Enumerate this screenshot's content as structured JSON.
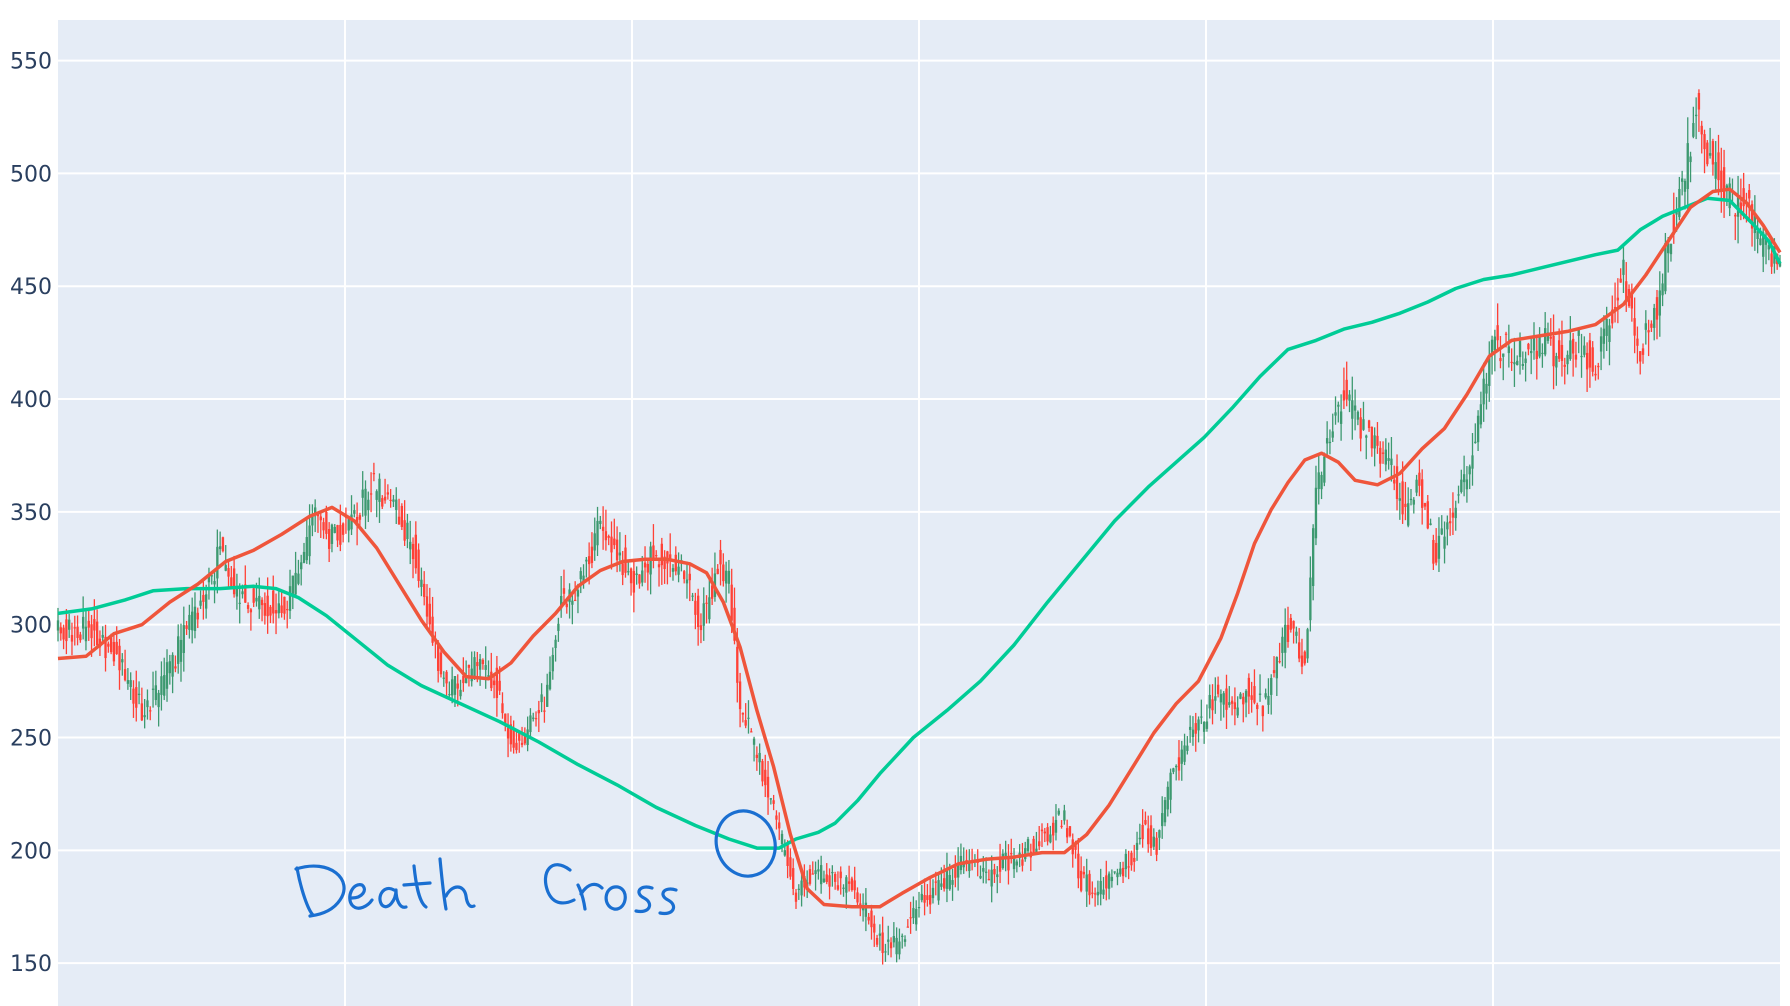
{
  "chart_data": {
    "type": "candlestick",
    "title": "",
    "xlabel": "",
    "ylabel": "",
    "ylim": [
      131,
      568
    ],
    "yticks": [
      150,
      200,
      250,
      300,
      350,
      400,
      450,
      500,
      550
    ],
    "x_gridlines": 5,
    "grid": true,
    "legend": "none",
    "colors": {
      "plot_background": "#e5ecf6",
      "grid": "#ffffff",
      "tick_text": "#2a3f5f",
      "candle_up": "#3d9970",
      "candle_down": "#ff4136",
      "short_ma": "#ef553b",
      "long_ma": "#00cc96",
      "annotation": "#1a6fd1"
    },
    "candle_close_path": [
      [
        0,
        297
      ],
      [
        12,
        298
      ],
      [
        22,
        284
      ],
      [
        30,
        262
      ],
      [
        36,
        270
      ],
      [
        44,
        292
      ],
      [
        52,
        311
      ],
      [
        58,
        333
      ],
      [
        64,
        312
      ],
      [
        72,
        311
      ],
      [
        80,
        307
      ],
      [
        85,
        319
      ],
      [
        92,
        349
      ],
      [
        98,
        338
      ],
      [
        105,
        344
      ],
      [
        112,
        362
      ],
      [
        120,
        352
      ],
      [
        127,
        334
      ],
      [
        133,
        298
      ],
      [
        138,
        275
      ],
      [
        144,
        273
      ],
      [
        150,
        283
      ],
      [
        156,
        276
      ],
      [
        162,
        248
      ],
      [
        168,
        253
      ],
      [
        175,
        268
      ],
      [
        180,
        311
      ],
      [
        187,
        318
      ],
      [
        193,
        341
      ],
      [
        200,
        334
      ],
      [
        206,
        316
      ],
      [
        212,
        331
      ],
      [
        218,
        330
      ],
      [
        225,
        322
      ],
      [
        230,
        299
      ],
      [
        236,
        327
      ],
      [
        240,
        318
      ],
      [
        244,
        263
      ],
      [
        248,
        250
      ],
      [
        253,
        231
      ],
      [
        258,
        207
      ],
      [
        264,
        181
      ],
      [
        270,
        190
      ],
      [
        278,
        187
      ],
      [
        285,
        183
      ],
      [
        290,
        170
      ],
      [
        296,
        155
      ],
      [
        302,
        160
      ],
      [
        308,
        178
      ],
      [
        314,
        182
      ],
      [
        320,
        190
      ],
      [
        326,
        195
      ],
      [
        332,
        187
      ],
      [
        338,
        194
      ],
      [
        344,
        197
      ],
      [
        350,
        203
      ],
      [
        356,
        211
      ],
      [
        360,
        214
      ],
      [
        366,
        186
      ],
      [
        372,
        183
      ],
      [
        378,
        191
      ],
      [
        384,
        196
      ],
      [
        388,
        210
      ],
      [
        393,
        203
      ],
      [
        398,
        233
      ],
      [
        404,
        248
      ],
      [
        410,
        258
      ],
      [
        415,
        271
      ],
      [
        420,
        260
      ],
      [
        426,
        273
      ],
      [
        431,
        262
      ],
      [
        436,
        285
      ],
      [
        441,
        300
      ],
      [
        446,
        280
      ],
      [
        450,
        359
      ],
      [
        455,
        385
      ],
      [
        460,
        403
      ],
      [
        465,
        390
      ],
      [
        470,
        382
      ],
      [
        476,
        372
      ],
      [
        482,
        350
      ],
      [
        487,
        365
      ],
      [
        492,
        332
      ],
      [
        496,
        338
      ],
      [
        500,
        354
      ],
      [
        505,
        375
      ],
      [
        510,
        402
      ],
      [
        514,
        426
      ],
      [
        520,
        420
      ],
      [
        526,
        418
      ],
      [
        532,
        427
      ],
      [
        538,
        415
      ],
      [
        544,
        425
      ],
      [
        550,
        413
      ],
      [
        556,
        438
      ],
      [
        560,
        455
      ],
      [
        566,
        420
      ],
      [
        572,
        442
      ],
      [
        577,
        475
      ],
      [
        582,
        498
      ],
      [
        586,
        531
      ],
      [
        590,
        510
      ],
      [
        595,
        497
      ],
      [
        600,
        485
      ],
      [
        604,
        488
      ],
      [
        608,
        472
      ],
      [
        612,
        462
      ],
      [
        616,
        460
      ]
    ],
    "short_ma_path": [
      [
        0,
        285
      ],
      [
        10,
        286
      ],
      [
        20,
        296
      ],
      [
        30,
        300
      ],
      [
        40,
        310
      ],
      [
        50,
        318
      ],
      [
        60,
        328
      ],
      [
        70,
        333
      ],
      [
        80,
        340
      ],
      [
        90,
        348
      ],
      [
        98,
        352
      ],
      [
        106,
        346
      ],
      [
        114,
        334
      ],
      [
        122,
        318
      ],
      [
        130,
        302
      ],
      [
        138,
        288
      ],
      [
        146,
        277
      ],
      [
        154,
        276
      ],
      [
        162,
        283
      ],
      [
        170,
        295
      ],
      [
        178,
        305
      ],
      [
        186,
        317
      ],
      [
        194,
        324
      ],
      [
        202,
        328
      ],
      [
        210,
        329
      ],
      [
        218,
        329
      ],
      [
        226,
        327
      ],
      [
        232,
        323
      ],
      [
        238,
        310
      ],
      [
        244,
        290
      ],
      [
        250,
        262
      ],
      [
        256,
        237
      ],
      [
        262,
        207
      ],
      [
        268,
        183
      ],
      [
        274,
        176
      ],
      [
        284,
        175
      ],
      [
        294,
        175
      ],
      [
        302,
        181
      ],
      [
        312,
        188
      ],
      [
        322,
        194
      ],
      [
        332,
        196
      ],
      [
        342,
        197
      ],
      [
        352,
        199
      ],
      [
        360,
        199
      ],
      [
        368,
        207
      ],
      [
        376,
        220
      ],
      [
        384,
        236
      ],
      [
        392,
        252
      ],
      [
        400,
        265
      ],
      [
        408,
        275
      ],
      [
        416,
        294
      ],
      [
        422,
        314
      ],
      [
        428,
        336
      ],
      [
        434,
        351
      ],
      [
        440,
        363
      ],
      [
        446,
        373
      ],
      [
        452,
        376
      ],
      [
        458,
        372
      ],
      [
        464,
        364
      ],
      [
        472,
        362
      ],
      [
        480,
        367
      ],
      [
        488,
        378
      ],
      [
        496,
        387
      ],
      [
        504,
        402
      ],
      [
        512,
        419
      ],
      [
        520,
        426
      ],
      [
        530,
        428
      ],
      [
        540,
        430
      ],
      [
        550,
        433
      ],
      [
        560,
        442
      ],
      [
        568,
        455
      ],
      [
        576,
        470
      ],
      [
        584,
        485
      ],
      [
        592,
        492
      ],
      [
        598,
        493
      ],
      [
        604,
        487
      ],
      [
        610,
        477
      ],
      [
        616,
        465
      ]
    ],
    "long_ma_path": [
      [
        0,
        305
      ],
      [
        12,
        307
      ],
      [
        24,
        311
      ],
      [
        34,
        315
      ],
      [
        46,
        316
      ],
      [
        58,
        316
      ],
      [
        70,
        317
      ],
      [
        78,
        316
      ],
      [
        86,
        312
      ],
      [
        96,
        304
      ],
      [
        106,
        294
      ],
      [
        118,
        282
      ],
      [
        130,
        273
      ],
      [
        144,
        265
      ],
      [
        158,
        257
      ],
      [
        172,
        248
      ],
      [
        186,
        238
      ],
      [
        200,
        229
      ],
      [
        214,
        219
      ],
      [
        228,
        211
      ],
      [
        240,
        205
      ],
      [
        250,
        201
      ],
      [
        258,
        201
      ],
      [
        264,
        205
      ],
      [
        272,
        208
      ],
      [
        278,
        212
      ],
      [
        286,
        222
      ],
      [
        294,
        234
      ],
      [
        306,
        250
      ],
      [
        318,
        262
      ],
      [
        330,
        275
      ],
      [
        342,
        291
      ],
      [
        354,
        310
      ],
      [
        366,
        328
      ],
      [
        378,
        346
      ],
      [
        390,
        361
      ],
      [
        400,
        372
      ],
      [
        410,
        383
      ],
      [
        420,
        396
      ],
      [
        430,
        410
      ],
      [
        440,
        422
      ],
      [
        450,
        426
      ],
      [
        460,
        431
      ],
      [
        470,
        434
      ],
      [
        480,
        438
      ],
      [
        490,
        443
      ],
      [
        500,
        449
      ],
      [
        510,
        453
      ],
      [
        520,
        455
      ],
      [
        530,
        458
      ],
      [
        540,
        461
      ],
      [
        550,
        464
      ],
      [
        558,
        466
      ],
      [
        566,
        475
      ],
      [
        574,
        481
      ],
      [
        582,
        485
      ],
      [
        590,
        489
      ],
      [
        598,
        488
      ],
      [
        606,
        478
      ],
      [
        612,
        470
      ],
      [
        616,
        460
      ]
    ],
    "annotation": {
      "text": "Death Cross",
      "style": "handwritten",
      "circle_at": [
        246,
        203
      ]
    }
  }
}
